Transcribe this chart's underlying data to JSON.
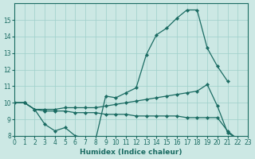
{
  "xlabel": "Humidex (Indice chaleur)",
  "bg_color": "#cce8e4",
  "line_color": "#1a6b62",
  "grid_color": "#9ecfca",
  "xlim": [
    0,
    23
  ],
  "ylim": [
    8,
    16
  ],
  "yticks": [
    8,
    9,
    10,
    11,
    12,
    13,
    14,
    15
  ],
  "xticks": [
    0,
    1,
    2,
    3,
    4,
    5,
    6,
    7,
    8,
    9,
    10,
    11,
    12,
    13,
    14,
    15,
    16,
    17,
    18,
    19,
    20,
    21,
    22,
    23
  ],
  "series": [
    {
      "x": [
        0,
        1,
        2,
        3,
        4,
        5,
        6,
        7,
        8,
        9,
        10,
        11,
        12,
        13,
        14,
        15,
        16,
        17,
        18,
        19,
        20,
        21
      ],
      "y": [
        10.0,
        10.0,
        9.6,
        8.7,
        8.3,
        8.5,
        8.0,
        7.9,
        7.75,
        10.4,
        10.3,
        10.6,
        10.9,
        12.9,
        14.1,
        14.5,
        15.1,
        15.6,
        15.6,
        13.3,
        12.2,
        11.3
      ]
    },
    {
      "x": [
        0,
        1,
        2,
        3,
        4,
        5,
        6,
        7,
        8,
        9,
        10,
        11,
        12,
        13,
        14,
        15,
        16,
        17,
        18,
        19,
        20,
        21,
        22,
        23
      ],
      "y": [
        10.0,
        10.0,
        9.6,
        9.6,
        9.6,
        9.7,
        9.7,
        9.7,
        9.7,
        9.8,
        9.9,
        10.0,
        10.1,
        10.2,
        10.3,
        10.4,
        10.5,
        10.6,
        10.7,
        11.1,
        9.8,
        8.2,
        7.8,
        7.8
      ]
    },
    {
      "x": [
        0,
        1,
        2,
        3,
        4,
        5,
        6,
        7,
        8,
        9,
        10,
        11,
        12,
        13,
        14,
        15,
        16,
        17,
        18,
        19,
        20,
        21,
        22,
        23
      ],
      "y": [
        10.0,
        10.0,
        9.6,
        9.5,
        9.5,
        9.5,
        9.4,
        9.4,
        9.4,
        9.3,
        9.3,
        9.3,
        9.2,
        9.2,
        9.2,
        9.2,
        9.2,
        9.1,
        9.1,
        9.1,
        9.1,
        8.3,
        7.8,
        7.8
      ]
    }
  ]
}
